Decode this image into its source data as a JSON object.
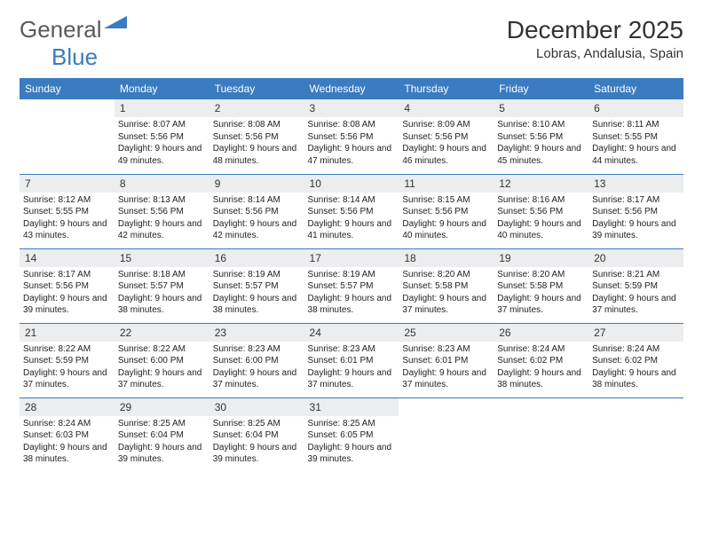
{
  "logo": {
    "word1": "General",
    "word2": "Blue"
  },
  "title": "December 2025",
  "location": "Lobras, Andalusia, Spain",
  "colors": {
    "header_bg": "#3b7bbf",
    "header_text": "#ffffff",
    "daynum_bg": "#ecedee",
    "row_divider": "#3b7bbf",
    "page_bg": "#ffffff",
    "text": "#222222",
    "logo_gray": "#5a5a5a",
    "logo_blue": "#3b7bbf"
  },
  "day_headers": [
    "Sunday",
    "Monday",
    "Tuesday",
    "Wednesday",
    "Thursday",
    "Friday",
    "Saturday"
  ],
  "weeks": [
    [
      null,
      {
        "n": "1",
        "sunrise": "8:07 AM",
        "sunset": "5:56 PM",
        "dl": "9 hours and 49 minutes."
      },
      {
        "n": "2",
        "sunrise": "8:08 AM",
        "sunset": "5:56 PM",
        "dl": "9 hours and 48 minutes."
      },
      {
        "n": "3",
        "sunrise": "8:08 AM",
        "sunset": "5:56 PM",
        "dl": "9 hours and 47 minutes."
      },
      {
        "n": "4",
        "sunrise": "8:09 AM",
        "sunset": "5:56 PM",
        "dl": "9 hours and 46 minutes."
      },
      {
        "n": "5",
        "sunrise": "8:10 AM",
        "sunset": "5:56 PM",
        "dl": "9 hours and 45 minutes."
      },
      {
        "n": "6",
        "sunrise": "8:11 AM",
        "sunset": "5:55 PM",
        "dl": "9 hours and 44 minutes."
      }
    ],
    [
      {
        "n": "7",
        "sunrise": "8:12 AM",
        "sunset": "5:55 PM",
        "dl": "9 hours and 43 minutes."
      },
      {
        "n": "8",
        "sunrise": "8:13 AM",
        "sunset": "5:56 PM",
        "dl": "9 hours and 42 minutes."
      },
      {
        "n": "9",
        "sunrise": "8:14 AM",
        "sunset": "5:56 PM",
        "dl": "9 hours and 42 minutes."
      },
      {
        "n": "10",
        "sunrise": "8:14 AM",
        "sunset": "5:56 PM",
        "dl": "9 hours and 41 minutes."
      },
      {
        "n": "11",
        "sunrise": "8:15 AM",
        "sunset": "5:56 PM",
        "dl": "9 hours and 40 minutes."
      },
      {
        "n": "12",
        "sunrise": "8:16 AM",
        "sunset": "5:56 PM",
        "dl": "9 hours and 40 minutes."
      },
      {
        "n": "13",
        "sunrise": "8:17 AM",
        "sunset": "5:56 PM",
        "dl": "9 hours and 39 minutes."
      }
    ],
    [
      {
        "n": "14",
        "sunrise": "8:17 AM",
        "sunset": "5:56 PM",
        "dl": "9 hours and 39 minutes."
      },
      {
        "n": "15",
        "sunrise": "8:18 AM",
        "sunset": "5:57 PM",
        "dl": "9 hours and 38 minutes."
      },
      {
        "n": "16",
        "sunrise": "8:19 AM",
        "sunset": "5:57 PM",
        "dl": "9 hours and 38 minutes."
      },
      {
        "n": "17",
        "sunrise": "8:19 AM",
        "sunset": "5:57 PM",
        "dl": "9 hours and 38 minutes."
      },
      {
        "n": "18",
        "sunrise": "8:20 AM",
        "sunset": "5:58 PM",
        "dl": "9 hours and 37 minutes."
      },
      {
        "n": "19",
        "sunrise": "8:20 AM",
        "sunset": "5:58 PM",
        "dl": "9 hours and 37 minutes."
      },
      {
        "n": "20",
        "sunrise": "8:21 AM",
        "sunset": "5:59 PM",
        "dl": "9 hours and 37 minutes."
      }
    ],
    [
      {
        "n": "21",
        "sunrise": "8:22 AM",
        "sunset": "5:59 PM",
        "dl": "9 hours and 37 minutes."
      },
      {
        "n": "22",
        "sunrise": "8:22 AM",
        "sunset": "6:00 PM",
        "dl": "9 hours and 37 minutes."
      },
      {
        "n": "23",
        "sunrise": "8:23 AM",
        "sunset": "6:00 PM",
        "dl": "9 hours and 37 minutes."
      },
      {
        "n": "24",
        "sunrise": "8:23 AM",
        "sunset": "6:01 PM",
        "dl": "9 hours and 37 minutes."
      },
      {
        "n": "25",
        "sunrise": "8:23 AM",
        "sunset": "6:01 PM",
        "dl": "9 hours and 37 minutes."
      },
      {
        "n": "26",
        "sunrise": "8:24 AM",
        "sunset": "6:02 PM",
        "dl": "9 hours and 38 minutes."
      },
      {
        "n": "27",
        "sunrise": "8:24 AM",
        "sunset": "6:02 PM",
        "dl": "9 hours and 38 minutes."
      }
    ],
    [
      {
        "n": "28",
        "sunrise": "8:24 AM",
        "sunset": "6:03 PM",
        "dl": "9 hours and 38 minutes."
      },
      {
        "n": "29",
        "sunrise": "8:25 AM",
        "sunset": "6:04 PM",
        "dl": "9 hours and 39 minutes."
      },
      {
        "n": "30",
        "sunrise": "8:25 AM",
        "sunset": "6:04 PM",
        "dl": "9 hours and 39 minutes."
      },
      {
        "n": "31",
        "sunrise": "8:25 AM",
        "sunset": "6:05 PM",
        "dl": "9 hours and 39 minutes."
      },
      null,
      null,
      null
    ]
  ],
  "labels": {
    "sunrise_prefix": "Sunrise: ",
    "sunset_prefix": "Sunset: ",
    "daylight_prefix": "Daylight: "
  }
}
